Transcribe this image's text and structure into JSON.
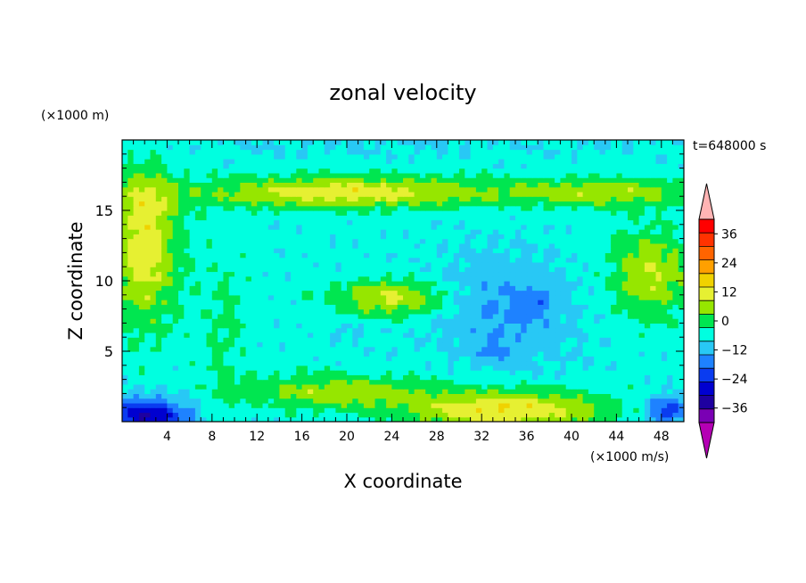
{
  "chart_data": {
    "type": "heatmap",
    "title": "zonal velocity",
    "xlabel": "X coordinate",
    "ylabel": "Z coordinate",
    "y_units": "(×1000 m)",
    "x_units_note": "(×1000 m/s)",
    "time_label": "t=648000 s",
    "xlim": [
      0,
      50
    ],
    "ylim": [
      0,
      20
    ],
    "x_ticks": [
      "4",
      "8",
      "12",
      "16",
      "20",
      "24",
      "28",
      "32",
      "36",
      "40",
      "44",
      "48"
    ],
    "y_ticks": [
      "5",
      "10",
      "15"
    ],
    "colorbar": {
      "tick_labels": [
        "36",
        "24",
        "12",
        "0",
        "−12",
        "−24",
        "−36"
      ],
      "levels": [
        -42,
        -36,
        -30,
        -24,
        -18,
        -12,
        -6,
        0,
        6,
        12,
        18,
        24,
        30,
        36,
        42
      ],
      "extend": "both",
      "colors": [
        "#b400b4",
        "#7a00b4",
        "#1e00a0",
        "#0000d0",
        "#0a3cf0",
        "#1e82ff",
        "#28c8f5",
        "#00ffe0",
        "#00e650",
        "#96e600",
        "#e6f032",
        "#f0d200",
        "#ffa000",
        "#ff6400",
        "#ff3200",
        "#ff0000",
        "#ffb4b4"
      ]
    },
    "grid": false
  }
}
